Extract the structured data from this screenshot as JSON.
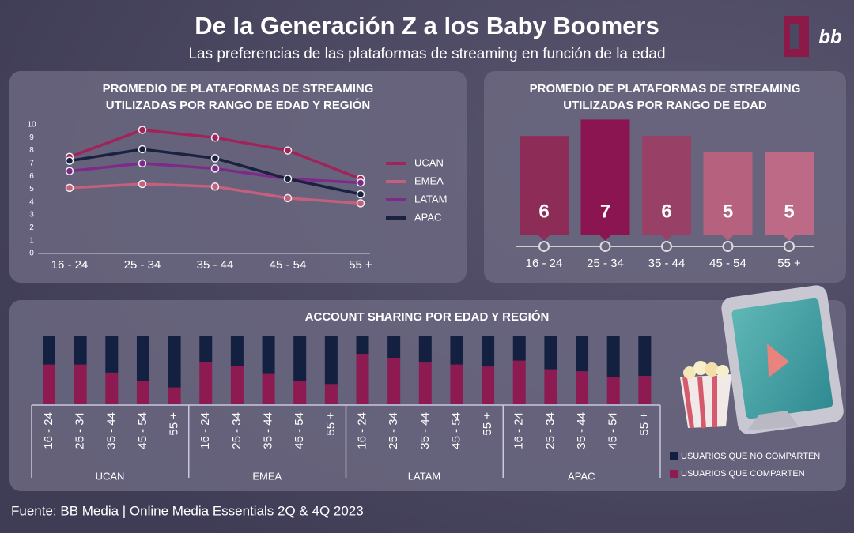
{
  "title": "De la Generación Z a los Baby Boomers",
  "subtitle": "Las preferencias de las plataformas de streaming en función de la edad",
  "logo": "bb",
  "source": "Fuente: BB Media | Online Media Essentials 2Q & 4Q 2023",
  "chart_data": [
    {
      "type": "line",
      "title": "PROMEDIO DE PLATAFORMAS DE STREAMING\nUTILIZADAS POR RANGO DE EDAD Y REGIÓN",
      "categories": [
        "16 - 24",
        "25 - 34",
        "35 - 44",
        "45 - 54",
        "55 +"
      ],
      "ylim": [
        0,
        10
      ],
      "yticks": [
        0,
        1,
        2,
        3,
        4,
        5,
        6,
        7,
        8,
        9,
        10
      ],
      "series": [
        {
          "name": "UCAN",
          "color": "#a2235a",
          "values": [
            7.5,
            9.6,
            9.0,
            8.0,
            5.8
          ]
        },
        {
          "name": "EMEA",
          "color": "#c4607c",
          "values": [
            5.1,
            5.4,
            5.2,
            4.3,
            3.9
          ]
        },
        {
          "name": "LATAM",
          "color": "#7e2a8a",
          "values": [
            6.4,
            7.0,
            6.6,
            5.8,
            5.5
          ]
        },
        {
          "name": "APAC",
          "color": "#1b2240",
          "values": [
            7.2,
            8.1,
            7.4,
            5.8,
            4.6
          ]
        }
      ],
      "legend": "right"
    },
    {
      "type": "bar",
      "title": "PROMEDIO DE PLATAFORMAS DE STREAMING\nUTILIZADAS POR RANGO DE EDAD",
      "categories": [
        "16 - 24",
        "25 - 34",
        "35 - 44",
        "45 - 54",
        "55 +"
      ],
      "values": [
        6,
        7,
        6,
        5,
        5
      ],
      "colors": [
        "#8e2c58",
        "#8b1550",
        "#994066",
        "#b6627e",
        "#bd6a86"
      ]
    },
    {
      "type": "stacked-bar",
      "title": "ACCOUNT SHARING POR EDAD Y REGIÓN",
      "groups": [
        "UCAN",
        "EMEA",
        "LATAM",
        "APAC"
      ],
      "categories": [
        "16 - 24",
        "25 - 34",
        "35 - 44",
        "45 - 54",
        "55 +",
        "16 - 24",
        "25 - 34",
        "35 - 44",
        "45 - 54",
        "55 +",
        "16 - 24",
        "25 - 34",
        "35 - 44",
        "45 - 54",
        "55 +",
        "16 - 24",
        "25 - 34",
        "35 - 44",
        "45 - 54",
        "55 +"
      ],
      "series": [
        {
          "name": "USUARIOS QUE COMPARTEN",
          "color": "#8d1a50",
          "values": [
            58,
            58,
            46,
            33,
            24,
            62,
            56,
            44,
            33,
            29,
            74,
            68,
            61,
            58,
            55,
            64,
            51,
            48,
            40,
            41
          ]
        },
        {
          "name": "USUARIOS QUE NO COMPARTEN",
          "color": "#13203f",
          "values": [
            42,
            42,
            54,
            67,
            76,
            38,
            44,
            56,
            67,
            71,
            26,
            32,
            39,
            42,
            45,
            36,
            49,
            52,
            60,
            59
          ]
        }
      ],
      "legend": "right"
    }
  ]
}
